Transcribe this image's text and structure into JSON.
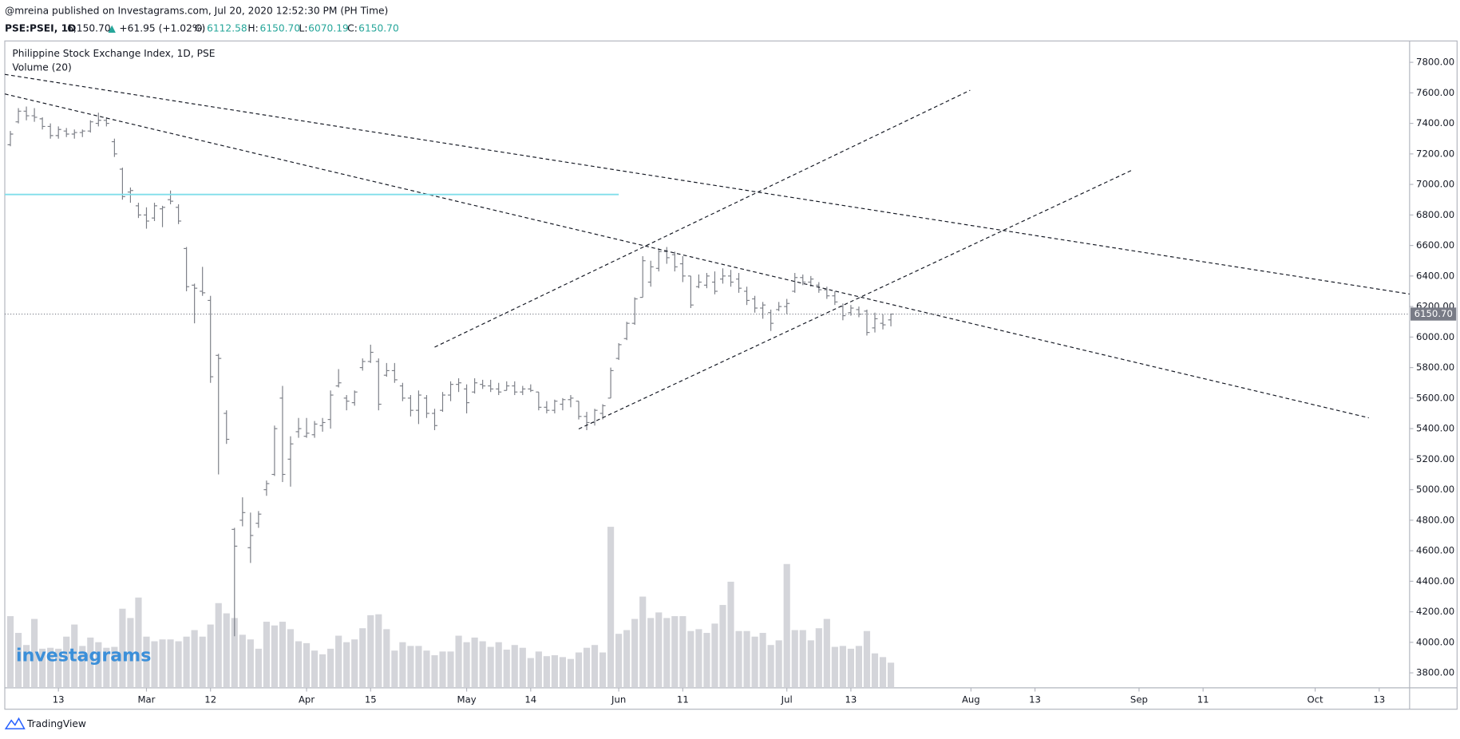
{
  "header": {
    "byline": "@mreina published on Investagrams.com, Jul 20, 2020 12:52:30 PM (PH Time)",
    "symbol": "PSE:PSEI, 1D",
    "last": "6,150.70",
    "arrow": "▲",
    "change": "+61.95 (+1.02%)",
    "ohlc": [
      {
        "key": "O:",
        "value": "6112.58"
      },
      {
        "key": "H:",
        "value": "6150.70"
      },
      {
        "key": "L:",
        "value": "6070.19"
      },
      {
        "key": "C:",
        "value": "6150.70"
      }
    ]
  },
  "branding": {
    "watermark": "investagrams",
    "footer": "TradingView"
  },
  "chart_data": {
    "type": "ohlc",
    "title": "Philippine Stock Exchange Index, 1D, PSE",
    "color": "#7b7e86",
    "open": [
      7260,
      7410,
      7480,
      7450,
      7430,
      7380,
      7320,
      7350,
      7330,
      7340,
      7350,
      7400,
      7420,
      7280,
      7100,
      6950,
      6860,
      6800,
      6780,
      6840,
      6900,
      6850,
      6580,
      6340,
      6300,
      6240,
      5880,
      5500,
      4740,
      4800,
      4620,
      4780,
      5000,
      5100,
      5600,
      5200,
      5380,
      5350,
      5360,
      5420,
      5460,
      5680,
      5600,
      5570,
      5800,
      5840,
      5840,
      5750,
      5780,
      5680,
      5600,
      5520,
      5600,
      5500,
      5520,
      5620,
      5690,
      5660,
      5640,
      5690,
      5680,
      5660,
      5650,
      5680,
      5640,
      5660,
      5640,
      5540,
      5520,
      5560,
      5590,
      5580,
      5480,
      5440,
      5500,
      5600,
      5860,
      5990,
      6090,
      6260,
      6360,
      6450,
      6560,
      6540,
      6480,
      6400,
      6330,
      6340,
      6360,
      6380,
      6400,
      6380,
      6300,
      6250,
      6190,
      6160,
      6180,
      6200,
      6300,
      6390,
      6360,
      6340,
      6310,
      6270,
      6200,
      6160,
      6180,
      6170,
      6060,
      6090,
      6112.58
    ],
    "high": [
      7350,
      7500,
      7510,
      7500,
      7440,
      7400,
      7380,
      7370,
      7360,
      7360,
      7420,
      7470,
      7440,
      7300,
      7110,
      6980,
      6880,
      6850,
      6880,
      6860,
      6960,
      6870,
      6590,
      6350,
      6460,
      6270,
      5890,
      5520,
      4750,
      4950,
      4850,
      4860,
      5060,
      5420,
      5680,
      5350,
      5470,
      5470,
      5450,
      5470,
      5650,
      5790,
      5620,
      5650,
      5860,
      5950,
      5860,
      5830,
      5830,
      5700,
      5620,
      5650,
      5620,
      5530,
      5640,
      5710,
      5730,
      5690,
      5730,
      5720,
      5720,
      5700,
      5710,
      5710,
      5680,
      5690,
      5640,
      5580,
      5590,
      5600,
      5620,
      5580,
      5510,
      5530,
      5560,
      5800,
      5960,
      6100,
      6260,
      6530,
      6500,
      6580,
      6590,
      6560,
      6530,
      6400,
      6410,
      6420,
      6430,
      6450,
      6440,
      6420,
      6330,
      6270,
      6230,
      6180,
      6230,
      6250,
      6420,
      6410,
      6400,
      6360,
      6330,
      6300,
      6220,
      6210,
      6200,
      6180,
      6160,
      6150,
      6150.7
    ],
    "low": [
      7250,
      7400,
      7420,
      7410,
      7360,
      7300,
      7300,
      7310,
      7300,
      7310,
      7340,
      7380,
      7380,
      7180,
      6900,
      6880,
      6780,
      6710,
      6760,
      6720,
      6870,
      6740,
      6300,
      6090,
      6270,
      5700,
      5100,
      5300,
      4040,
      4760,
      4520,
      4750,
      4960,
      5090,
      5050,
      5020,
      5340,
      5340,
      5340,
      5380,
      5400,
      5670,
      5520,
      5550,
      5780,
      5830,
      5520,
      5740,
      5700,
      5580,
      5480,
      5430,
      5470,
      5390,
      5510,
      5580,
      5640,
      5500,
      5630,
      5660,
      5640,
      5620,
      5650,
      5620,
      5620,
      5640,
      5520,
      5500,
      5500,
      5520,
      5540,
      5460,
      5390,
      5420,
      5460,
      5600,
      5850,
      5980,
      6080,
      6260,
      6330,
      6430,
      6480,
      6430,
      6360,
      6190,
      6320,
      6320,
      6280,
      6350,
      6330,
      6290,
      6210,
      6160,
      6120,
      6040,
      6170,
      6150,
      6290,
      6340,
      6330,
      6290,
      6250,
      6210,
      6110,
      6140,
      6130,
      6010,
      6030,
      6050,
      6070.19
    ],
    "close": [
      7330,
      7480,
      7450,
      7440,
      7380,
      7320,
      7360,
      7330,
      7340,
      7350,
      7410,
      7420,
      7400,
      7200,
      6920,
      6960,
      6800,
      6760,
      6860,
      6850,
      6890,
      6760,
      6330,
      6320,
      6290,
      5740,
      5860,
      5330,
      4630,
      4850,
      4700,
      4840,
      5040,
      5400,
      5100,
      5300,
      5400,
      5370,
      5430,
      5440,
      5620,
      5700,
      5580,
      5640,
      5840,
      5900,
      5560,
      5780,
      5720,
      5600,
      5520,
      5620,
      5500,
      5420,
      5620,
      5690,
      5700,
      5570,
      5700,
      5680,
      5660,
      5640,
      5680,
      5640,
      5660,
      5650,
      5540,
      5520,
      5580,
      5590,
      5600,
      5480,
      5440,
      5520,
      5550,
      5780,
      5950,
      6090,
      6250,
      6500,
      6460,
      6560,
      6520,
      6460,
      6400,
      6210,
      6360,
      6400,
      6300,
      6400,
      6360,
      6320,
      6240,
      6190,
      6210,
      6090,
      6200,
      6220,
      6390,
      6360,
      6380,
      6310,
      6270,
      6230,
      6140,
      6190,
      6150,
      6030,
      6120,
      6080,
      6150.7
    ],
    "volume": {
      "name": "Volume (20)",
      "color": "#d4d5da",
      "ylim": [
        0,
        220
      ],
      "values": [
        77,
        59,
        46,
        74,
        42,
        43,
        42,
        55,
        68,
        45,
        54,
        49,
        43,
        44,
        85,
        75,
        97,
        55,
        50,
        52,
        52,
        50,
        55,
        62,
        55,
        68,
        91,
        80,
        75,
        57,
        52,
        42,
        71,
        67,
        71,
        63,
        50,
        48,
        40,
        36,
        42,
        56,
        49,
        52,
        64,
        78,
        79,
        63,
        40,
        49,
        45,
        45,
        40,
        35,
        39,
        39,
        56,
        49,
        54,
        50,
        44,
        49,
        41,
        46,
        43,
        32,
        39,
        34,
        35,
        33,
        31,
        38,
        43,
        46,
        38,
        173,
        58,
        62,
        74,
        98,
        75,
        81,
        75,
        77,
        77,
        61,
        63,
        59,
        69,
        89,
        114,
        61,
        61,
        55,
        59,
        46,
        51,
        133,
        62,
        62,
        51,
        64,
        74,
        44,
        45,
        42,
        45,
        61,
        37,
        33,
        27
      ]
    },
    "xlim": [
      -0.7,
      174.8
    ],
    "xticks": [
      {
        "value": 6,
        "label": "13"
      },
      {
        "value": 17,
        "label": "Mar"
      },
      {
        "value": 25,
        "label": "12"
      },
      {
        "value": 37,
        "label": "Apr"
      },
      {
        "value": 45,
        "label": "15"
      },
      {
        "value": 57,
        "label": "May"
      },
      {
        "value": 65,
        "label": "14"
      },
      {
        "value": 76,
        "label": "Jun"
      },
      {
        "value": 84,
        "label": "11"
      },
      {
        "value": 97,
        "label": "Jul"
      },
      {
        "value": 105,
        "label": "13"
      },
      {
        "value": 120,
        "label": "Aug"
      },
      {
        "value": 128,
        "label": "13"
      },
      {
        "value": 141,
        "label": "Sep"
      },
      {
        "value": 149,
        "label": "11"
      },
      {
        "value": 163,
        "label": "Oct"
      },
      {
        "value": 171,
        "label": "13"
      }
    ],
    "ylim": [
      3702,
      7940
    ],
    "yticks": [
      {
        "value": 3800,
        "label": "3800.00"
      },
      {
        "value": 4000,
        "label": "4000.00"
      },
      {
        "value": 4200,
        "label": "4200.00"
      },
      {
        "value": 4400,
        "label": "4400.00"
      },
      {
        "value": 4600,
        "label": "4600.00"
      },
      {
        "value": 4800,
        "label": "4800.00"
      },
      {
        "value": 5000,
        "label": "5000.00"
      },
      {
        "value": 5200,
        "label": "5200.00"
      },
      {
        "value": 5400,
        "label": "5400.00"
      },
      {
        "value": 5600,
        "label": "5600.00"
      },
      {
        "value": 5800,
        "label": "5800.00"
      },
      {
        "value": 6000,
        "label": "6000.00"
      },
      {
        "value": 6200,
        "label": "6200.00"
      },
      {
        "value": 6400,
        "label": "6400.00"
      },
      {
        "value": 6600,
        "label": "6600.00"
      },
      {
        "value": 6800,
        "label": "6800.00"
      },
      {
        "value": 7000,
        "label": "7000.00"
      },
      {
        "value": 7200,
        "label": "7200.00"
      },
      {
        "value": 7400,
        "label": "7400.00"
      },
      {
        "value": 7600,
        "label": "7600.00"
      },
      {
        "value": 7800,
        "label": "7800.00"
      }
    ],
    "last_price": {
      "value": 6150.7,
      "label": "6150.70",
      "color": "#787b86"
    },
    "drawings": [
      {
        "x": [
          -0.7,
          174.8
        ],
        "y": [
          7721,
          6282
        ],
        "color": "#131722",
        "dashed": true
      },
      {
        "x": [
          -0.7,
          169.7
        ],
        "y": [
          7593,
          5471
        ],
        "color": "#131722",
        "dashed": true
      },
      {
        "x": [
          53.0,
          119.9
        ],
        "y": [
          5934,
          7617
        ],
        "color": "#131722",
        "dashed": true
      },
      {
        "x": [
          71.0,
          140.1
        ],
        "y": [
          5398,
          7093
        ],
        "color": "#131722",
        "dashed": true
      },
      {
        "x": [
          -0.7,
          76.0
        ],
        "y": [
          6934,
          6934
        ],
        "color": "#80deea",
        "dashed": false
      }
    ]
  }
}
